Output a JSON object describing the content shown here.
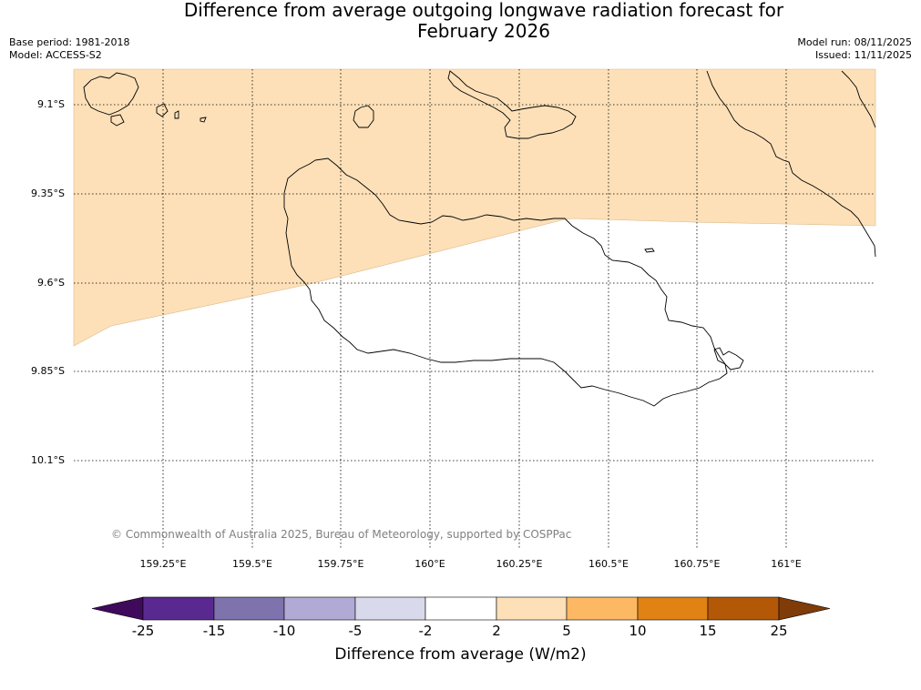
{
  "header": {
    "title_line1": "Difference from average outgoing longwave radiation forecast for",
    "title_line2": "February 2026",
    "base_period": "Base period: 1981-2018",
    "model": "Model: ACCESS-S2",
    "model_run": "Model run: 08/11/2025",
    "issued": "Issued: 11/11/2025"
  },
  "map": {
    "lat_labels": [
      "9.1°S",
      "9.35°S",
      "9.6°S",
      "9.85°S",
      "10.1°S"
    ],
    "lon_labels": [
      "159.25°E",
      "159.5°E",
      "159.75°E",
      "160°E",
      "160.25°E",
      "160.5°E",
      "160.75°E",
      "161°E"
    ],
    "fill_category": "2 to 5",
    "fill_color": "#fde0b8",
    "copyright": "© Commonwealth of Australia 2025, Bureau of Meteorology, supported by COSPPac"
  },
  "colorbar": {
    "title": "Difference from average (W/m2)",
    "ticks": [
      "-25",
      "-15",
      "-10",
      "-5",
      "-2",
      "2",
      "5",
      "10",
      "15",
      "25"
    ],
    "colors": [
      "#3f0a5c",
      "#5a2990",
      "#7f73ad",
      "#b0aad4",
      "#d9d9ec",
      "#ffffff",
      "#fde0b8",
      "#fdb863",
      "#e08214",
      "#b35806",
      "#7f3b08"
    ]
  }
}
